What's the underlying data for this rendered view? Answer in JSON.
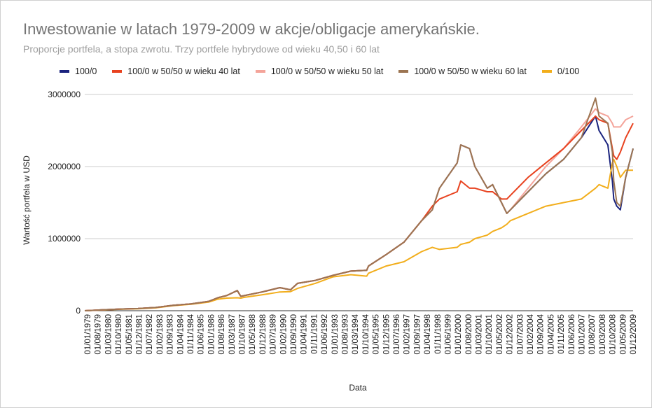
{
  "chart_data": {
    "type": "line",
    "title": "Inwestowanie w latach 1979-2009 w akcje/obligacje amerykańskie.",
    "subtitle": "Proporcje portfela, a stopa zwrotu. Trzy portfele hybrydowe od wieku 40,50 i 60 lat",
    "xlabel": "Data",
    "ylabel": "Wartość portfela w USD",
    "ylim": [
      0,
      3000000
    ],
    "yticks": [
      0,
      1000000,
      2000000,
      3000000
    ],
    "ytick_labels": [
      "0",
      "1000000",
      "2000000",
      "3000000"
    ],
    "grid": true,
    "legend_position": "top",
    "x_tick_labels": [
      "01/01/1979",
      "01/08/1979",
      "01/03/1980",
      "01/10/1980",
      "01/05/1981",
      "01/12/1981",
      "01/07/1982",
      "01/02/1983",
      "01/09/1983",
      "01/04/1984",
      "01/11/1984",
      "01/06/1985",
      "01/01/1986",
      "01/08/1986",
      "01/03/1987",
      "01/10/1987",
      "01/05/1988",
      "01/12/1988",
      "01/07/1989",
      "01/02/1990",
      "01/09/1990",
      "01/04/1991",
      "01/11/1991",
      "01/06/1992",
      "01/01/1993",
      "01/08/1993",
      "01/03/1994",
      "01/10/1994",
      "01/05/1995",
      "01/12/1995",
      "01/07/1996",
      "01/02/1997",
      "01/09/1997",
      "01/04/1998",
      "01/11/1998",
      "01/06/1999",
      "01/01/2000",
      "01/08/2000",
      "01/03/2001",
      "01/10/2001",
      "01/05/2002",
      "01/12/2002",
      "01/07/2003",
      "01/02/2004",
      "01/09/2004",
      "01/04/2005",
      "01/11/2005",
      "01/06/2006",
      "01/01/2007",
      "01/08/2007",
      "01/03/2008",
      "01/10/2008",
      "01/05/2009",
      "01/12/2009"
    ],
    "x": [
      1979.0,
      1980.0,
      1981.0,
      1982.0,
      1983.0,
      1984.0,
      1985.0,
      1986.0,
      1986.5,
      1987.0,
      1987.6,
      1987.8,
      1988.0,
      1989.0,
      1990.0,
      1990.6,
      1991.0,
      1992.0,
      1993.0,
      1994.0,
      1994.9,
      1995.0,
      1996.0,
      1997.0,
      1998.0,
      1998.6,
      1999.0,
      2000.0,
      2000.2,
      2000.7,
      2001.0,
      2001.7,
      2002.0,
      2002.5,
      2002.8,
      2003.0,
      2004.0,
      2005.0,
      2006.0,
      2007.0,
      2007.8,
      2008.0,
      2008.5,
      2008.75,
      2008.83,
      2009.0,
      2009.2,
      2009.5,
      2009.92
    ],
    "series": [
      {
        "name": "100/0",
        "color": "#1a237e",
        "values": [
          0,
          12000,
          23000,
          30000,
          45000,
          75000,
          95000,
          130000,
          180000,
          210000,
          280000,
          200000,
          210000,
          260000,
          320000,
          290000,
          380000,
          420000,
          490000,
          550000,
          560000,
          620000,
          780000,
          950000,
          1250000,
          1400000,
          1700000,
          2050000,
          2300000,
          2250000,
          2000000,
          1700000,
          1750000,
          1500000,
          1350000,
          1400000,
          1650000,
          1900000,
          2100000,
          2400000,
          2700000,
          2500000,
          2300000,
          1800000,
          1550000,
          1450000,
          1400000,
          1850000,
          2250000
        ]
      },
      {
        "name": "100/0 w 50/50 w wieku 40 lat",
        "color": "#e8421f",
        "values": [
          0,
          12000,
          23000,
          30000,
          45000,
          75000,
          95000,
          130000,
          180000,
          210000,
          280000,
          200000,
          210000,
          260000,
          320000,
          290000,
          380000,
          420000,
          490000,
          550000,
          560000,
          620000,
          780000,
          950000,
          1250000,
          1450000,
          1550000,
          1650000,
          1800000,
          1700000,
          1700000,
          1650000,
          1650000,
          1550000,
          1550000,
          1600000,
          1850000,
          2050000,
          2250000,
          2500000,
          2700000,
          2650000,
          2600000,
          2250000,
          2150000,
          2100000,
          2200000,
          2400000,
          2600000
        ]
      },
      {
        "name": "100/0 w 50/50 w wieku 50 lat",
        "color": "#f4a49a",
        "values": [
          0,
          12000,
          23000,
          30000,
          45000,
          75000,
          95000,
          130000,
          180000,
          210000,
          280000,
          200000,
          210000,
          260000,
          320000,
          290000,
          380000,
          420000,
          490000,
          550000,
          560000,
          620000,
          780000,
          950000,
          1250000,
          1400000,
          1700000,
          2050000,
          2300000,
          2250000,
          2000000,
          1700000,
          1750000,
          1500000,
          1350000,
          1400000,
          1700000,
          2000000,
          2250000,
          2550000,
          2800000,
          2750000,
          2700000,
          2600000,
          2550000,
          2550000,
          2550000,
          2650000,
          2700000
        ]
      },
      {
        "name": "100/0 w 50/50 w wieku 60 lat",
        "color": "#9c7552",
        "values": [
          0,
          12000,
          23000,
          30000,
          45000,
          75000,
          95000,
          130000,
          180000,
          210000,
          280000,
          200000,
          210000,
          260000,
          320000,
          290000,
          380000,
          420000,
          490000,
          550000,
          560000,
          620000,
          780000,
          950000,
          1250000,
          1400000,
          1700000,
          2050000,
          2300000,
          2250000,
          2000000,
          1700000,
          1750000,
          1500000,
          1350000,
          1400000,
          1650000,
          1900000,
          2100000,
          2400000,
          2950000,
          2700000,
          2600000,
          2200000,
          1800000,
          1500000,
          1450000,
          1850000,
          2250000
        ]
      },
      {
        "name": "0/100",
        "color": "#f2ae1c",
        "values": [
          0,
          10000,
          20000,
          27000,
          40000,
          70000,
          90000,
          120000,
          160000,
          175000,
          180000,
          175000,
          185000,
          220000,
          260000,
          265000,
          310000,
          380000,
          470000,
          500000,
          480000,
          520000,
          620000,
          680000,
          820000,
          880000,
          850000,
          880000,
          920000,
          950000,
          1000000,
          1050000,
          1100000,
          1150000,
          1200000,
          1250000,
          1350000,
          1450000,
          1500000,
          1550000,
          1700000,
          1750000,
          1700000,
          2050000,
          2100000,
          2000000,
          1850000,
          1950000,
          1950000
        ]
      }
    ]
  }
}
